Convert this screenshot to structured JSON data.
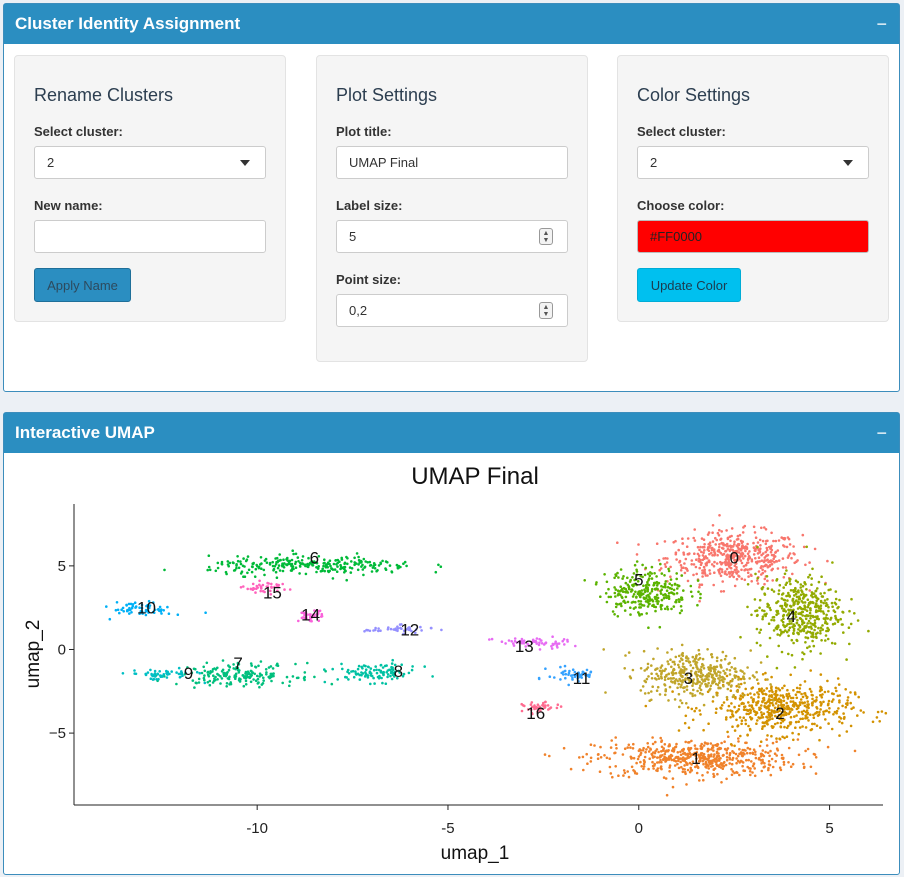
{
  "panel1": {
    "title": "Cluster Identity Assignment",
    "collapse": "−",
    "rename": {
      "heading": "Rename Clusters",
      "select_label": "Select cluster:",
      "select_value": "2",
      "new_name_label": "New name:",
      "new_name_value": "",
      "apply_label": "Apply Name"
    },
    "plot": {
      "heading": "Plot Settings",
      "title_label": "Plot title:",
      "title_value": "UMAP Final",
      "label_size_label": "Label size:",
      "label_size_value": "5",
      "point_size_label": "Point size:",
      "point_size_value": "0,2"
    },
    "color": {
      "heading": "Color Settings",
      "select_label": "Select cluster:",
      "select_value": "2",
      "choose_label": "Choose color:",
      "color_value": "#FF0000",
      "update_label": "Update Color"
    }
  },
  "panel2": {
    "title": "Interactive UMAP",
    "collapse": "−"
  },
  "chart_data": {
    "type": "scatter",
    "title": "UMAP Final",
    "xlabel": "umap_1",
    "ylabel": "umap_2",
    "xlim": [
      -14.8,
      6.4
    ],
    "ylim": [
      -9.3,
      8.7
    ],
    "xticks": [
      -10,
      -5,
      0,
      5
    ],
    "yticks": [
      5,
      0,
      -5
    ],
    "xtick_labels": [
      "-10",
      "-5",
      "0",
      "5"
    ],
    "ytick_labels": [
      "5",
      "0",
      "−5"
    ],
    "grid": false,
    "series": [
      {
        "label": "0",
        "color": "#f8766d",
        "center": [
          2.5,
          5.5
        ],
        "spread": [
          1.6,
          1.4
        ],
        "label_pos": [
          2.5,
          5.5
        ]
      },
      {
        "label": "1",
        "color": "#f0822b",
        "center": [
          1.5,
          -6.5
        ],
        "spread": [
          2.4,
          1.0
        ],
        "label_pos": [
          1.5,
          -6.5
        ]
      },
      {
        "label": "2",
        "color": "#d39200",
        "center": [
          3.7,
          -3.5
        ],
        "spread": [
          1.7,
          1.4
        ],
        "label_pos": [
          3.7,
          -3.8
        ]
      },
      {
        "label": "3",
        "color": "#c0a52a",
        "center": [
          1.5,
          -1.5
        ],
        "spread": [
          1.3,
          1.3
        ],
        "label_pos": [
          1.3,
          -1.7
        ]
      },
      {
        "label": "4",
        "color": "#93aa00",
        "center": [
          4.2,
          2.2
        ],
        "spread": [
          1.0,
          2.0
        ],
        "label_pos": [
          4.0,
          2.0
        ]
      },
      {
        "label": "5",
        "color": "#5bb300",
        "center": [
          0.2,
          3.5
        ],
        "spread": [
          1.0,
          1.3
        ],
        "label_pos": [
          0.0,
          4.2
        ]
      },
      {
        "label": "6",
        "color": "#00ba38",
        "center": [
          -8.5,
          5.0
        ],
        "spread": [
          2.5,
          0.5
        ],
        "label_pos": [
          -8.5,
          5.5
        ]
      },
      {
        "label": "7",
        "color": "#00bf7d",
        "center": [
          -10.5,
          -1.5
        ],
        "spread": [
          1.4,
          0.6
        ],
        "label_pos": [
          -10.5,
          -0.8
        ]
      },
      {
        "label": "8",
        "color": "#00c1a3",
        "center": [
          -6.9,
          -1.4
        ],
        "spread": [
          1.0,
          0.5
        ],
        "label_pos": [
          -6.3,
          -1.3
        ]
      },
      {
        "label": "9",
        "color": "#00bfc4",
        "center": [
          -12.5,
          -1.5
        ],
        "spread": [
          0.8,
          0.3
        ],
        "label_pos": [
          -11.8,
          -1.4
        ]
      },
      {
        "label": "10",
        "color": "#00b0f6",
        "center": [
          -13.0,
          2.4
        ],
        "spread": [
          0.7,
          0.4
        ],
        "label_pos": [
          -12.9,
          2.5
        ]
      },
      {
        "label": "11",
        "color": "#35a2ff",
        "center": [
          -1.7,
          -1.5
        ],
        "spread": [
          0.6,
          0.4
        ],
        "label_pos": [
          -1.5,
          -1.7
        ]
      },
      {
        "label": "12",
        "color": "#9590ff",
        "center": [
          -6.3,
          1.2
        ],
        "spread": [
          0.8,
          0.2
        ],
        "label_pos": [
          -6.0,
          1.2
        ]
      },
      {
        "label": "13",
        "color": "#e76bf3",
        "center": [
          -2.8,
          0.4
        ],
        "spread": [
          0.9,
          0.3
        ],
        "label_pos": [
          -3.0,
          0.2
        ]
      },
      {
        "label": "14",
        "color": "#fa62db",
        "center": [
          -8.6,
          2.0
        ],
        "spread": [
          0.3,
          0.3
        ],
        "label_pos": [
          -8.6,
          2.1
        ]
      },
      {
        "label": "15",
        "color": "#ff62bc",
        "center": [
          -9.8,
          3.7
        ],
        "spread": [
          0.5,
          0.3
        ],
        "label_pos": [
          -9.6,
          3.4
        ]
      },
      {
        "label": "16",
        "color": "#ff6c91",
        "center": [
          -2.6,
          -3.5
        ],
        "spread": [
          0.4,
          0.3
        ],
        "label_pos": [
          -2.7,
          -3.8
        ]
      }
    ]
  }
}
